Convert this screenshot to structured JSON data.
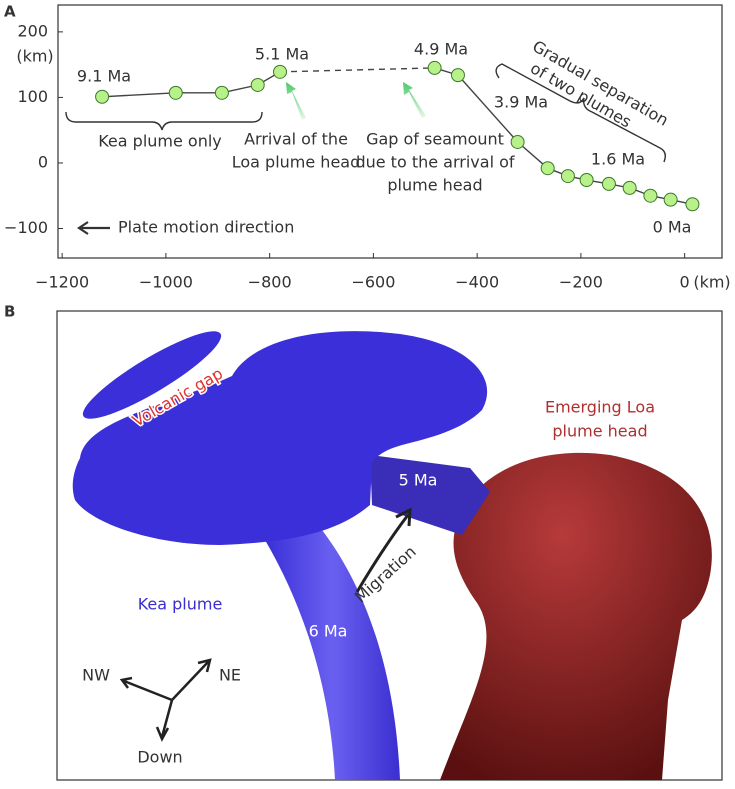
{
  "chart_data": {
    "type": "line",
    "panel_label": "A",
    "x_unit": "(km)",
    "y_unit": "(km)",
    "xlim": [
      -1208,
      72
    ],
    "ylim": [
      -145,
      241
    ],
    "xticks": [
      {
        "value": -1200,
        "label": "−1200"
      },
      {
        "value": -1000,
        "label": "−1000"
      },
      {
        "value": -800,
        "label": "−800"
      },
      {
        "value": -600,
        "label": "−600"
      },
      {
        "value": -400,
        "label": "−400"
      },
      {
        "value": -200,
        "label": "−200"
      },
      0
    ],
    "yticks": [
      200,
      100,
      0,
      {
        "value": -100,
        "label": "−100"
      }
    ],
    "connect_dashed": true,
    "series": [
      {
        "color": "#b8f08a",
        "x": [
          -1123,
          -981,
          -892,
          -823,
          -780
        ],
        "values": [
          101,
          107,
          107,
          119,
          139
        ]
      },
      {
        "color": "#b8f08a",
        "x": [
          -482,
          -437,
          -322,
          -264,
          -225,
          -189,
          -146,
          -106,
          -66,
          -27,
          15
        ],
        "values": [
          145,
          134,
          32,
          -8,
          -20,
          -26,
          -32,
          -38,
          -50,
          -56,
          -63
        ]
      }
    ],
    "annotations": [
      [
        "9.1 Ma"
      ],
      [
        "5.1 Ma"
      ],
      [
        "4.9 Ma"
      ],
      [
        "3.9 Ma"
      ],
      [
        "1.6 Ma"
      ],
      [
        "0 Ma"
      ],
      [
        "Kea plume only"
      ],
      [
        "Arrival of the",
        "Loa plume head"
      ],
      [
        "Gap of seamount",
        "due to the arrival of",
        "plume head"
      ],
      [
        "Gradual separation",
        "of two plumes"
      ],
      [
        "Plate motion direction"
      ]
    ]
  },
  "panel_b": {
    "panel_label": "B",
    "volcanic_gap": "Volcanic gap",
    "loa": [
      "Emerging Loa",
      "plume head"
    ],
    "age_5": "5 Ma",
    "kea": "Kea plume",
    "migration": "Migration",
    "age_6": "6 Ma",
    "nw": "NW",
    "ne": "NE",
    "down": "Down"
  }
}
